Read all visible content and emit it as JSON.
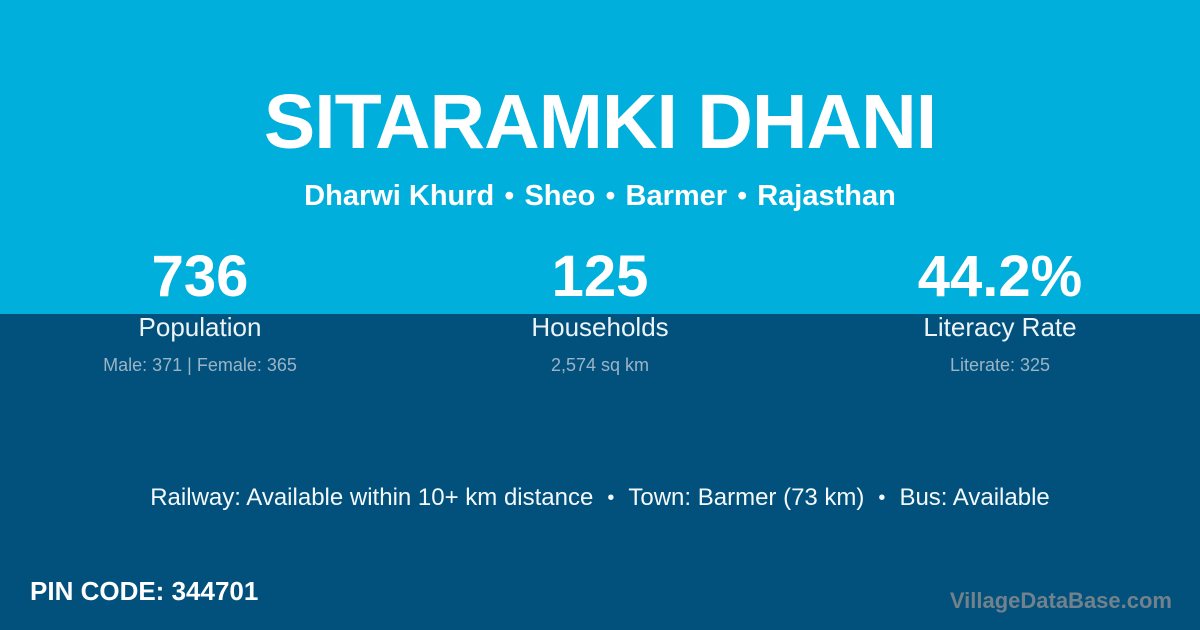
{
  "theme": {
    "top_background": "#00AFDC",
    "bottom_background": "#02517D",
    "primary_text": "#FFFFFF",
    "muted_text": "#9BB4C6",
    "watermark_text": "#71828C"
  },
  "separators": {
    "bullet": "•"
  },
  "header": {
    "title": "SITARAMKI DHANI",
    "breadcrumb": [
      "Dharwi Khurd",
      "Sheo",
      "Barmer",
      "Rajasthan"
    ]
  },
  "stats": [
    {
      "value": "736",
      "label": "Population",
      "detail": "Male: 371 | Female: 365"
    },
    {
      "value": "125",
      "label": "Households",
      "detail": "2,574 sq km"
    },
    {
      "value": "44.2%",
      "label": "Literacy Rate",
      "detail": "Literate: 325"
    }
  ],
  "amenities": {
    "items": [
      "Railway: Available within 10+ km distance",
      "Town: Barmer (73 km)",
      "Bus: Available"
    ]
  },
  "footer": {
    "pin_code_label": "PIN CODE:",
    "pin_code_value": "344701",
    "watermark": "VillageDataBase.com"
  }
}
